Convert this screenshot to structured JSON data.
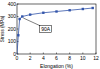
{
  "chart_data": {
    "type": "line",
    "x_label": "Elongation (%)",
    "y_label": "Stress (MPa)",
    "annotation": "90A",
    "x": [
      0,
      0.2,
      0.4,
      0.8,
      2,
      4,
      6,
      8,
      10,
      11.5
    ],
    "series": [
      {
        "name": "90A",
        "color": "#3355aa",
        "marker": "square",
        "values": [
          0,
          150,
          280,
          300,
          315,
          330,
          340,
          350,
          360,
          368
        ]
      }
    ],
    "xlim": [
      0,
      12
    ],
    "xticks": [
      0,
      2,
      4,
      6,
      8,
      10,
      12
    ],
    "ylim": [
      0,
      400
    ],
    "yticks": [
      0,
      100,
      200,
      300,
      400
    ],
    "grid": false
  }
}
